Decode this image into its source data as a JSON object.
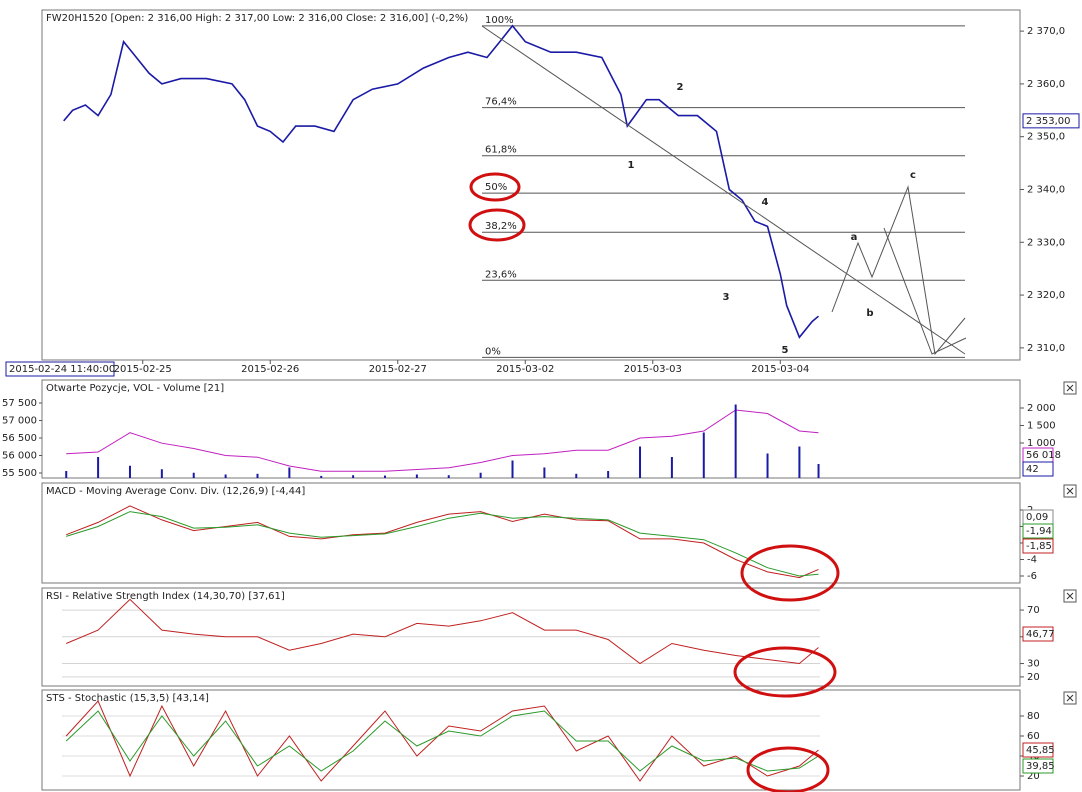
{
  "chart_data": [
    {
      "type": "line",
      "title": "FW20H1520 [Open: 2 316,00  High: 2 317,00  Low: 2 316,00  Close: 2 316,00] (-0,2%)",
      "x": [
        -0.62,
        -0.55,
        -0.45,
        -0.35,
        -0.25,
        -0.15,
        -0.05,
        0.05,
        0.15,
        0.3,
        0.5,
        0.7,
        0.8,
        0.9,
        1.0,
        1.1,
        1.2,
        1.35,
        1.5,
        1.65,
        1.8,
        2.0,
        2.2,
        2.4,
        2.55,
        2.7,
        2.8,
        2.9,
        3.0,
        3.2,
        3.4,
        3.6,
        3.75,
        3.8,
        3.95,
        4.05,
        4.2,
        4.35,
        4.5,
        4.6,
        4.7,
        4.8,
        4.9,
        5.0,
        5.05,
        5.15,
        5.25,
        5.3
      ],
      "series": [
        {
          "color": "#1a1aa6",
          "values": [
            2353,
            2355,
            2356,
            2354,
            2358,
            2368,
            2365,
            2362,
            2360,
            2361,
            2361,
            2360,
            2357,
            2352,
            2351,
            2349,
            2352,
            2352,
            2351,
            2357,
            2359,
            2360,
            2363,
            2365,
            2366,
            2365,
            2368,
            2371,
            2368,
            2366,
            2366,
            2365,
            2358,
            2352,
            2357,
            2357,
            2354,
            2354,
            2351,
            2340,
            2338,
            2334,
            2333,
            2324,
            2318,
            2312,
            2315,
            2316
          ]
        }
      ],
      "xlim": [
        -0.79,
        6.88
      ],
      "ylim": [
        2307.7,
        2374
      ],
      "yticks": [
        {
          "value": 2310,
          "label": "2 310,0"
        },
        {
          "value": 2320,
          "label": "2 320,0"
        },
        {
          "value": 2330,
          "label": "2 330,0"
        },
        {
          "value": 2340,
          "label": "2 340,0"
        },
        {
          "value": 2350,
          "label": "2 350,0"
        },
        {
          "value": 2360,
          "label": "2 360,0"
        },
        {
          "value": 2370,
          "label": "2 370,0"
        }
      ],
      "xticks": [
        {
          "value": 0,
          "label": "2015-02-25"
        },
        {
          "value": 1,
          "label": "2015-02-26"
        },
        {
          "value": 2,
          "label": "2015-02-27"
        },
        {
          "value": 3,
          "label": "2015-03-02"
        },
        {
          "value": 4,
          "label": "2015-03-03"
        },
        {
          "value": 5,
          "label": "2015-03-04"
        }
      ],
      "current_price": {
        "value": 2353,
        "label": "2 353,00"
      },
      "cursor_time": "2015-02-24 11:40:00",
      "fibonacci": [
        {
          "label": "100%",
          "value": 2371
        },
        {
          "label": "76,4%",
          "value": 2355.5
        },
        {
          "label": "61,8%",
          "value": 2346.4
        },
        {
          "label": "50%",
          "value": 2339.3
        },
        {
          "label": "38,2%",
          "value": 2331.9
        },
        {
          "label": "23,6%",
          "value": 2322.8
        },
        {
          "label": "0%",
          "value": 2308.2
        }
      ],
      "wave_labels": [
        "1",
        "2",
        "3",
        "4",
        "5",
        "a",
        "b",
        "c"
      ]
    },
    {
      "type": "line",
      "title": "Otwarte Pozycje, VOL - Volume [21]",
      "x": [
        -0.6,
        -0.35,
        -0.1,
        0.15,
        0.4,
        0.65,
        0.9,
        1.15,
        1.4,
        1.65,
        1.9,
        2.15,
        2.4,
        2.65,
        2.9,
        3.15,
        3.4,
        3.65,
        3.9,
        4.15,
        4.4,
        4.65,
        4.9,
        5.15,
        5.3
      ],
      "series": [
        {
          "color": "#c020c0",
          "values": [
            56050,
            56100,
            56650,
            56350,
            56200,
            56000,
            55950,
            55700,
            55550,
            55550,
            55550,
            55600,
            55650,
            55800,
            56000,
            56050,
            56150,
            56150,
            56500,
            56550,
            56700,
            57300,
            57200,
            56700,
            56650
          ]
        },
        {
          "type": "bar",
          "axis": "y2",
          "color": "#1a1aa6",
          "values": [
            200,
            600,
            350,
            250,
            150,
            100,
            120,
            300,
            60,
            80,
            70,
            100,
            80,
            150,
            500,
            300,
            120,
            200,
            900,
            600,
            1300,
            2100,
            700,
            900,
            400
          ]
        }
      ],
      "xlim": [
        -0.79,
        6.88
      ],
      "ylim": [
        55357,
        58157
      ],
      "yticks": [
        {
          "value": 55500,
          "label": "55 500"
        },
        {
          "value": 56000,
          "label": "56 000"
        },
        {
          "value": 56500,
          "label": "56 500"
        },
        {
          "value": 57000,
          "label": "57 000"
        },
        {
          "value": 57500,
          "label": "57 500"
        }
      ],
      "y2lim": [
        0,
        2800
      ],
      "y2ticks": [
        {
          "value": 1000,
          "label": "1 000"
        },
        {
          "value": 1500,
          "label": "1 500"
        },
        {
          "value": 2000,
          "label": "2 000"
        }
      ],
      "readouts": [
        {
          "label": "56 018",
          "color": "#c020c0"
        },
        {
          "label": "42",
          "color": "#1a1aa6"
        }
      ]
    },
    {
      "type": "line",
      "title": "MACD - Moving Average Conv. Div. (12,26,9) [-4,44]",
      "x": [
        -0.6,
        -0.35,
        -0.1,
        0.15,
        0.4,
        0.65,
        0.9,
        1.15,
        1.4,
        1.65,
        1.9,
        2.15,
        2.4,
        2.65,
        2.9,
        3.15,
        3.4,
        3.65,
        3.9,
        4.15,
        4.4,
        4.65,
        4.9,
        5.15,
        5.3
      ],
      "series": [
        {
          "color": "#c02020",
          "values": [
            -1,
            0.5,
            2.5,
            0.8,
            -0.5,
            0,
            0.5,
            -1.2,
            -1.5,
            -1,
            -0.8,
            0.5,
            1.5,
            1.8,
            0.6,
            1.5,
            0.8,
            0.7,
            -1.5,
            -1.5,
            -2,
            -4,
            -5.5,
            -6.2,
            -5.2
          ]
        },
        {
          "color": "#2a9a2a",
          "values": [
            -1.2,
            0,
            1.8,
            1.2,
            -0.2,
            -0.1,
            0.2,
            -0.8,
            -1.3,
            -1.1,
            -0.9,
            0,
            1,
            1.6,
            1,
            1.2,
            1,
            0.8,
            -0.8,
            -1.2,
            -1.6,
            -3.2,
            -5,
            -6,
            -5.8
          ]
        }
      ],
      "xlim": [
        -0.79,
        6.88
      ],
      "ylim": [
        -6.85,
        5.27
      ],
      "yticks": [
        -6,
        -4,
        -2,
        0,
        2
      ],
      "readouts": [
        {
          "label": "0,09",
          "color": "#888888"
        },
        {
          "label": "-1,94",
          "color": "#2a9a2a"
        },
        {
          "label": "-1,85",
          "color": "#c02020"
        }
      ]
    },
    {
      "type": "line",
      "title": "RSI - Relative Strength Index (14,30,70) [37,61]",
      "x": [
        -0.6,
        -0.35,
        -0.1,
        0.15,
        0.4,
        0.65,
        0.9,
        1.15,
        1.4,
        1.65,
        1.9,
        2.15,
        2.4,
        2.65,
        2.9,
        3.15,
        3.4,
        3.65,
        3.9,
        4.15,
        4.4,
        4.65,
        4.9,
        5.15,
        5.3
      ],
      "series": [
        {
          "color": "#c02020",
          "values": [
            45,
            55,
            78,
            55,
            52,
            50,
            50,
            40,
            45,
            52,
            50,
            60,
            58,
            62,
            68,
            55,
            55,
            48,
            30,
            45,
            40,
            36,
            33,
            30,
            42
          ]
        }
      ],
      "xlim": [
        -0.79,
        6.88
      ],
      "ylim": [
        13.2,
        86.5
      ],
      "yticks": [
        20,
        30,
        50,
        70
      ],
      "readouts": [
        {
          "label": "46,77",
          "color": "#c02020"
        }
      ]
    },
    {
      "type": "line",
      "title": "STS - Stochastic (15,3,5) [43,14]",
      "x": [
        -0.6,
        -0.35,
        -0.1,
        0.15,
        0.4,
        0.65,
        0.9,
        1.15,
        1.4,
        1.65,
        1.9,
        2.15,
        2.4,
        2.65,
        2.9,
        3.15,
        3.4,
        3.65,
        3.9,
        4.15,
        4.4,
        4.65,
        4.9,
        5.15,
        5.3
      ],
      "series": [
        {
          "color": "#c02020",
          "values": [
            60,
            95,
            20,
            90,
            30,
            85,
            20,
            60,
            15,
            50,
            85,
            40,
            70,
            65,
            85,
            90,
            45,
            60,
            15,
            60,
            30,
            40,
            20,
            30,
            46
          ]
        },
        {
          "color": "#2a9a2a",
          "values": [
            55,
            85,
            35,
            80,
            40,
            75,
            30,
            50,
            25,
            45,
            75,
            50,
            65,
            60,
            80,
            85,
            55,
            55,
            25,
            50,
            35,
            38,
            25,
            28,
            40
          ]
        }
      ],
      "xlim": [
        -0.79,
        6.88
      ],
      "ylim": [
        6,
        106
      ],
      "yticks": [
        20,
        40,
        60,
        80
      ],
      "readouts": [
        {
          "label": "45,85",
          "color": "#c02020"
        },
        {
          "label": "39,85",
          "color": "#2a9a2a"
        }
      ]
    }
  ]
}
